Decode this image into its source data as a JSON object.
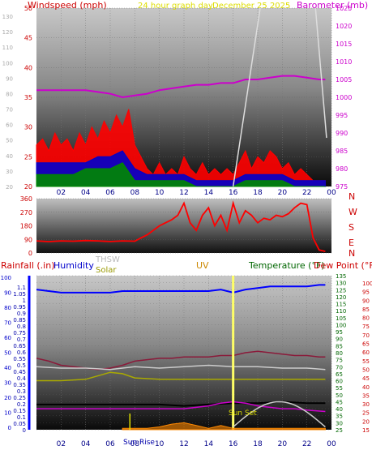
{
  "header": {
    "wind_title": "Windspeed (mph)",
    "graph_title": "24 hour graph day",
    "date": "December 25 2025",
    "baro_title": "Barometer (mb)"
  },
  "lower_legend": {
    "rain": "Rainfall (.in)",
    "humidity": "Humidity",
    "thsw": "THSW",
    "solar": "Solar",
    "uv": "UV",
    "temp": "Temperature (°F)",
    "dew": "Dew Point (°F)",
    "sunrise": "Sun Rise",
    "sunset": "Sun Set"
  },
  "colors": {
    "wind": "#ff0000",
    "gust": "#0000cc",
    "avg": "#008800",
    "baro": "#cc00cc",
    "dir": "#ff0000",
    "humidity": "#0000ff",
    "temp": "#8b1a3a",
    "dew": "#000000",
    "thsw": "#cccccc",
    "solar": "#aaaa00",
    "uv": "#ffff66",
    "rain": "#ff8800",
    "solar_radiation": "#cc00cc",
    "rain_axis": "#0000ff"
  },
  "chart_data": [
    {
      "type": "line",
      "name": "wind-barometer",
      "x_ticks": [
        "02",
        "04",
        "06",
        "08",
        "10",
        "12",
        "14",
        "16",
        "18",
        "20",
        "22",
        "00"
      ],
      "y_left_ticks": [
        20,
        25,
        30,
        35,
        40,
        45,
        50
      ],
      "y_left_faint": [
        20,
        30,
        40,
        50,
        60,
        70,
        80,
        90,
        100,
        110,
        120,
        130
      ],
      "y_right_ticks": [
        975,
        980,
        985,
        990,
        995,
        1000,
        1005,
        1010,
        1015,
        1020,
        1025
      ],
      "ylim_left": [
        20,
        50
      ],
      "ylim_right": [
        975,
        1025
      ],
      "series": [
        {
          "key": "wind",
          "x": [
            0,
            0.5,
            1,
            1.5,
            2,
            2.5,
            3,
            3.5,
            4,
            4.5,
            5,
            5.5,
            6,
            6.5,
            7,
            7.5,
            8,
            8.5,
            9,
            9.5,
            10,
            10.5,
            11,
            11.5,
            12,
            12.5,
            13,
            13.5,
            14,
            14.5,
            15,
            15.5,
            16,
            16.5,
            17,
            17.5,
            18,
            18.5,
            19,
            19.5,
            20,
            20.5,
            21,
            21.5,
            22,
            22.5,
            23,
            23.5
          ],
          "y": [
            27,
            28,
            26,
            29,
            27,
            28,
            26,
            29,
            27,
            30,
            28,
            31,
            29,
            32,
            30,
            33,
            27,
            25,
            23,
            22,
            24,
            22,
            23,
            22,
            25,
            23,
            22,
            24,
            22,
            23,
            22,
            23,
            22,
            24,
            26,
            23,
            25,
            24,
            26,
            25,
            23,
            24,
            22,
            23,
            22,
            21,
            21,
            21
          ]
        },
        {
          "key": "gust",
          "x": [
            0,
            1,
            2,
            3,
            4,
            5,
            6,
            7,
            8,
            9,
            10,
            11,
            12,
            13,
            14,
            15,
            16,
            17,
            18,
            19,
            20,
            21,
            22,
            23,
            23.5
          ],
          "y": [
            24,
            24,
            24,
            24,
            24,
            25,
            25,
            26,
            23,
            22,
            22,
            22,
            22,
            21,
            21,
            21,
            21,
            22,
            22,
            22,
            22,
            21,
            21,
            21,
            21
          ]
        },
        {
          "key": "avg",
          "x": [
            0,
            1,
            2,
            3,
            4,
            5,
            6,
            7,
            8,
            9,
            10,
            11,
            12,
            13,
            14,
            15,
            16,
            17,
            18,
            19,
            20,
            21,
            22,
            23,
            23.5
          ],
          "y": [
            22,
            22,
            22,
            22,
            23,
            23,
            23,
            24,
            21,
            21,
            21,
            21,
            21,
            20,
            20,
            20,
            20,
            21,
            21,
            21,
            21,
            20,
            20,
            20,
            20
          ]
        },
        {
          "key": "baro",
          "x": [
            0,
            2,
            4,
            6,
            7,
            8,
            9,
            10,
            11,
            12,
            13,
            14,
            15,
            16,
            17,
            18,
            19,
            20,
            21,
            22,
            23,
            23.5
          ],
          "y": [
            1002,
            1002,
            1002,
            1001,
            1000,
            1000.5,
            1001,
            1002,
            1002.5,
            1003,
            1003.5,
            1003.5,
            1004,
            1004,
            1005,
            1005,
            1005.5,
            1006,
            1006,
            1005.5,
            1005,
            1005
          ]
        }
      ]
    },
    {
      "type": "line",
      "name": "wind-direction",
      "y_ticks": [
        0,
        90,
        180,
        270,
        360
      ],
      "compass": [
        "N",
        "W",
        "S",
        "E",
        "N"
      ],
      "ylim": [
        0,
        360
      ],
      "x": [
        0,
        1,
        2,
        3,
        4,
        5,
        6,
        7,
        8,
        8.5,
        9,
        10,
        11,
        11.5,
        12,
        12.5,
        13,
        13.5,
        14,
        14.5,
        15,
        15.5,
        16,
        16.5,
        17,
        17.5,
        18,
        18.5,
        19,
        19.5,
        20,
        20.5,
        21,
        21.5,
        22,
        22.5,
        23,
        23.5
      ],
      "y": [
        80,
        75,
        80,
        78,
        82,
        80,
        76,
        80,
        78,
        100,
        120,
        180,
        220,
        250,
        330,
        200,
        150,
        250,
        300,
        180,
        250,
        150,
        330,
        200,
        280,
        250,
        200,
        230,
        220,
        250,
        240,
        260,
        300,
        330,
        320,
        100,
        20,
        10
      ]
    },
    {
      "type": "line",
      "name": "weather-multi",
      "x_ticks": [
        "02",
        "04",
        "06",
        "08",
        "10",
        "12",
        "14",
        "16",
        "18",
        "20",
        "22",
        "00"
      ],
      "rain_ticks": [
        0,
        0.05,
        0.1,
        0.15,
        0.2,
        0.25,
        0.3,
        0.35,
        0.4,
        0.45,
        0.5,
        0.55,
        0.6,
        0.65,
        0.7,
        0.75,
        0.8,
        0.85,
        0.9,
        0.95,
        1,
        1.05,
        1.1
      ],
      "humidity_ticks": [
        0,
        10,
        20,
        30,
        40,
        50,
        60,
        70,
        80,
        90,
        100
      ],
      "temp_ticks": [
        25,
        30,
        35,
        40,
        45,
        50,
        55,
        60,
        65,
        70,
        75,
        80,
        85,
        90,
        95,
        100,
        105,
        110,
        115,
        120,
        125,
        130,
        135
      ],
      "dew_ticks": [
        15,
        20,
        25,
        30,
        35,
        40,
        45,
        50,
        55,
        60,
        65,
        70,
        75,
        80,
        85,
        90,
        95,
        100
      ],
      "ylim_temp": [
        25,
        135
      ],
      "ylim_hum": [
        0,
        100
      ],
      "series": [
        {
          "key": "humidity",
          "x": [
            0,
            1,
            2,
            3,
            4,
            5,
            6,
            7,
            8,
            9,
            10,
            11,
            12,
            13,
            14,
            15,
            16,
            17,
            18,
            19,
            20,
            21,
            22,
            23,
            23.5
          ],
          "y": [
            91,
            90,
            89,
            89,
            89,
            89,
            89,
            90,
            90,
            90,
            90,
            90,
            90,
            90,
            90,
            91,
            89,
            91,
            92,
            93,
            93,
            93,
            93,
            94,
            94
          ]
        },
        {
          "key": "temp",
          "x": [
            0,
            1,
            2,
            3,
            4,
            5,
            6,
            7,
            8,
            9,
            10,
            11,
            12,
            13,
            14,
            15,
            16,
            17,
            18,
            19,
            20,
            21,
            22,
            23,
            23.5
          ],
          "y": [
            76,
            74,
            71,
            70,
            69,
            68,
            69,
            71,
            74,
            75,
            76,
            76,
            77,
            77,
            77,
            78,
            78,
            80,
            81,
            80,
            79,
            78,
            78,
            77,
            77
          ]
        },
        {
          "key": "dew",
          "x": [
            0,
            2,
            4,
            6,
            8,
            10,
            12,
            14,
            16,
            18,
            20,
            22,
            23.5
          ],
          "y": [
            43,
            43,
            43,
            43,
            43,
            43,
            42,
            43,
            44,
            44,
            45,
            44,
            44
          ]
        },
        {
          "key": "thsw",
          "x": [
            0,
            2,
            4,
            6,
            8,
            10,
            12,
            14,
            16,
            18,
            20,
            22,
            23.5
          ],
          "y": [
            70,
            69,
            69,
            68,
            70,
            69,
            70,
            71,
            70,
            70,
            69,
            69,
            68
          ]
        },
        {
          "key": "solar",
          "x": [
            0,
            2,
            4,
            6,
            7,
            8,
            10,
            12,
            14,
            16,
            18,
            20,
            22,
            23.5
          ],
          "y": [
            60,
            60,
            61,
            66,
            65,
            62,
            61,
            61,
            61,
            61,
            61,
            61,
            61,
            61
          ]
        },
        {
          "key": "solar_radiation",
          "x": [
            0,
            2,
            4,
            6,
            8,
            10,
            12,
            13,
            14,
            15,
            16,
            17,
            18,
            19,
            20,
            21,
            22,
            23.5
          ],
          "y": [
            40,
            40,
            40,
            40,
            40,
            40,
            40,
            41,
            42,
            44,
            45,
            44,
            42,
            41,
            40,
            40,
            39,
            38
          ]
        },
        {
          "key": "uv",
          "x": [
            15.9,
            16,
            16.1
          ],
          "y": [
            27,
            135,
            27
          ]
        },
        {
          "key": "rain",
          "x": [
            7,
            8,
            9,
            10,
            11,
            12,
            13,
            14,
            15,
            16,
            17,
            18,
            19,
            20,
            21,
            22,
            23.5
          ],
          "y": [
            26,
            26,
            26,
            27,
            29,
            30,
            28,
            26,
            28,
            26,
            26,
            26,
            26,
            26,
            26,
            26,
            26
          ]
        }
      ]
    }
  ]
}
